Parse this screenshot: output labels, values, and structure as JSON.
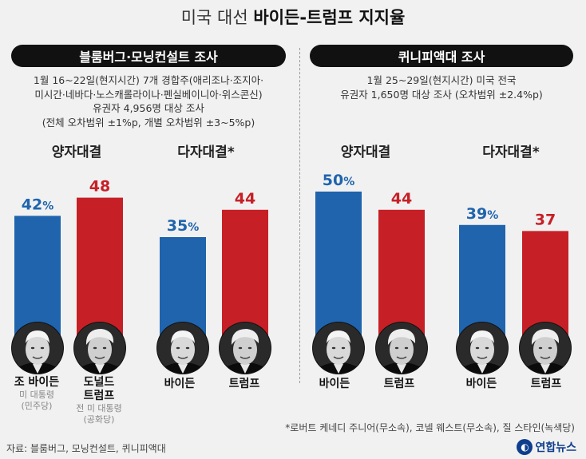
{
  "title": {
    "light": "미국 대선",
    "bold": "바이든-트럼프 지지율"
  },
  "colors": {
    "biden": "#1f64ad",
    "trump": "#c62026",
    "biden_text": "#1f64ad",
    "trump_text": "#c62026"
  },
  "left": {
    "header": "블룸버그·모닝컨설트 조사",
    "notes": [
      "1월 16~22일(현지시간) 7개 경합주(애리조나·조지아·",
      "미시간·네바다·노스캐롤라이나·펜실베이니아·위스콘신)",
      "유권자 4,956명 대상 조사",
      "(전체 오차범위 ±1%p, 개별 오차범위 ±3~5%p)"
    ],
    "groups": [
      "양자대결",
      "다자대결*"
    ]
  },
  "right": {
    "header": "퀴니피액대 조사",
    "notes": [
      "1월 25~29일(현지시간) 미국 전국",
      "유권자 1,650명 대상 조사 (오차범위 ±2.4%p)"
    ],
    "groups": [
      "양자대결",
      "다자대결*"
    ]
  },
  "candidates": {
    "left_biden_name": "조 바이든",
    "left_biden_sub1": "미 대통령",
    "left_biden_sub2": "(민주당)",
    "left_trump_name1": "도널드",
    "left_trump_name2": "트럼프",
    "left_trump_sub1": "전 미 대통령",
    "left_trump_sub2": "(공화당)",
    "biden": "바이든",
    "trump": "트럼프"
  },
  "footnote": "*로버트 케네디 주니어(무소속), 코넬 웨스트(무소속), 질 스타인(녹색당)",
  "source": "자료: 블룸버그, 모닝컨설트, 퀴니피액대",
  "logo": "연합뉴스",
  "chart_data": [
    {
      "type": "bar",
      "title": "블룸버그·모닝컨설트 조사 양자대결",
      "categories": [
        "바이든",
        "트럼프"
      ],
      "values": [
        42,
        48
      ],
      "labels": [
        "42",
        "48"
      ],
      "units": [
        "%",
        ""
      ]
    },
    {
      "type": "bar",
      "title": "블룸버그·모닝컨설트 조사 다자대결*",
      "categories": [
        "바이든",
        "트럼프"
      ],
      "values": [
        35,
        44
      ],
      "labels": [
        "35",
        "44"
      ],
      "units": [
        "%",
        ""
      ]
    },
    {
      "type": "bar",
      "title": "퀴니피액대 조사 양자대결",
      "categories": [
        "바이든",
        "트럼프"
      ],
      "values": [
        50,
        44
      ],
      "labels": [
        "50",
        "44"
      ],
      "units": [
        "%",
        ""
      ]
    },
    {
      "type": "bar",
      "title": "퀴니피액대 조사 다자대결*",
      "categories": [
        "바이든",
        "트럼프"
      ],
      "values": [
        39,
        37
      ],
      "labels": [
        "39",
        "37"
      ],
      "units": [
        "%",
        ""
      ]
    }
  ]
}
